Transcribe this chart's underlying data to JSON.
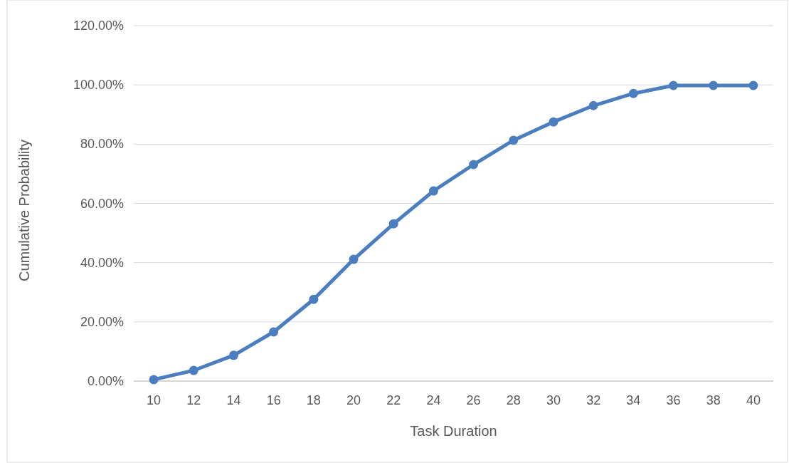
{
  "chart_data": {
    "type": "line",
    "xlabel": "Task Duration",
    "ylabel": "Cumulative Probability",
    "categories": [
      "10",
      "12",
      "14",
      "16",
      "18",
      "20",
      "22",
      "24",
      "26",
      "28",
      "30",
      "32",
      "34",
      "36",
      "38",
      "40"
    ],
    "series": [
      {
        "color": "#4a7ebf",
        "values": [
          0.5,
          3.6,
          8.7,
          16.6,
          27.6,
          41.1,
          53.1,
          64.2,
          73.1,
          81.3,
          87.5,
          93.0,
          97.1,
          99.8,
          99.8,
          99.8
        ]
      }
    ],
    "ylim": [
      0,
      120
    ],
    "yticks": [
      {
        "value": 0,
        "label": "0.00%"
      },
      {
        "value": 20,
        "label": "20.00%"
      },
      {
        "value": 40,
        "label": "40.00%"
      },
      {
        "value": 60,
        "label": "60.00%"
      },
      {
        "value": 80,
        "label": "80.00%"
      },
      {
        "value": 100,
        "label": "100.00%"
      },
      {
        "value": 120,
        "label": "120.00%"
      }
    ],
    "grid": "y",
    "marker": "circle",
    "line_style": "solid"
  }
}
